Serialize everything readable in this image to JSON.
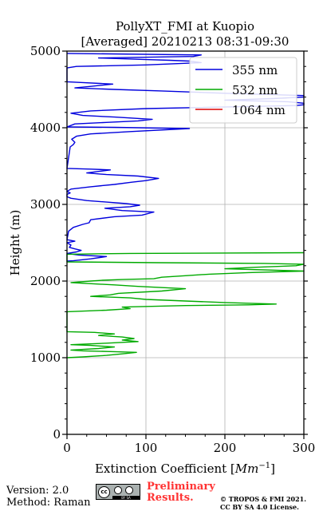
{
  "chart_data": {
    "type": "line",
    "title": "PollyXT_FMI at Kuopio",
    "subtitle": "[Averaged] 20210213 08:31-09:30",
    "xlabel": "Extinction Coefficient [",
    "xlabel_unit": "Mm",
    "xlabel_exp": "−1",
    "xlabel_close": "]",
    "ylabel": "Height (m)",
    "xlim": [
      0,
      300
    ],
    "ylim": [
      0,
      5000
    ],
    "xticks": [
      "0",
      "100",
      "200",
      "300"
    ],
    "yticks": [
      "0",
      "1000",
      "2000",
      "3000",
      "4000",
      "5000"
    ],
    "grid": true,
    "legend_position": "top-right",
    "series": [
      {
        "name": "355 nm",
        "color": "#0000dd",
        "points": [
          [
            0,
            2260
          ],
          [
            8,
            2265
          ],
          [
            30,
            2290
          ],
          [
            50,
            2320
          ],
          [
            15,
            2340
          ],
          [
            0,
            2360
          ],
          [
            12,
            2380
          ],
          [
            18,
            2400
          ],
          [
            10,
            2420
          ],
          [
            3,
            2440
          ],
          [
            5,
            2470
          ],
          [
            0,
            2500
          ],
          [
            10,
            2520
          ],
          [
            0,
            2540
          ],
          [
            2,
            2650
          ],
          [
            8,
            2700
          ],
          [
            20,
            2740
          ],
          [
            28,
            2760
          ],
          [
            30,
            2800
          ],
          [
            60,
            2840
          ],
          [
            95,
            2860
          ],
          [
            110,
            2900
          ],
          [
            70,
            2920
          ],
          [
            48,
            2950
          ],
          [
            80,
            2970
          ],
          [
            92,
            2990
          ],
          [
            75,
            3010
          ],
          [
            50,
            3030
          ],
          [
            25,
            3050
          ],
          [
            5,
            3080
          ],
          [
            0,
            3100
          ],
          [
            0,
            3130
          ],
          [
            4,
            3150
          ],
          [
            0,
            3170
          ],
          [
            5,
            3200
          ],
          [
            30,
            3230
          ],
          [
            60,
            3260
          ],
          [
            82,
            3290
          ],
          [
            100,
            3310
          ],
          [
            116,
            3340
          ],
          [
            90,
            3370
          ],
          [
            50,
            3390
          ],
          [
            25,
            3410
          ],
          [
            40,
            3430
          ],
          [
            55,
            3450
          ],
          [
            30,
            3460
          ],
          [
            0,
            3470
          ],
          [
            4,
            3750
          ],
          [
            8,
            3780
          ],
          [
            10,
            3810
          ],
          [
            6,
            3850
          ],
          [
            12,
            3890
          ],
          [
            30,
            3920
          ],
          [
            80,
            3950
          ],
          [
            155,
            3990
          ],
          [
            60,
            4005
          ],
          [
            0,
            4010
          ],
          [
            10,
            4050
          ],
          [
            50,
            4070
          ],
          [
            90,
            4090
          ],
          [
            108,
            4110
          ],
          [
            60,
            4140
          ],
          [
            20,
            4160
          ],
          [
            5,
            4190
          ],
          [
            30,
            4220
          ],
          [
            100,
            4250
          ],
          [
            290,
            4290
          ],
          [
            300,
            4300
          ],
          [
            300,
            4320
          ],
          [
            280,
            4340
          ],
          [
            200,
            4360
          ],
          [
            260,
            4380
          ],
          [
            300,
            4400
          ],
          [
            300,
            4420
          ],
          [
            200,
            4450
          ],
          [
            120,
            4480
          ],
          [
            60,
            4500
          ],
          [
            10,
            4520
          ],
          [
            30,
            4540
          ],
          [
            58,
            4570
          ],
          [
            20,
            4590
          ],
          [
            0,
            4600
          ],
          [
            0,
            4780
          ],
          [
            12,
            4800
          ],
          [
            100,
            4820
          ],
          [
            170,
            4850
          ],
          [
            155,
            4870
          ],
          [
            130,
            4880
          ],
          [
            100,
            4890
          ],
          [
            40,
            4910
          ],
          [
            160,
            4930
          ],
          [
            170,
            4950
          ],
          [
            0,
            4970
          ]
        ]
      },
      {
        "name": "532 nm",
        "color": "#00aa00",
        "points": [
          [
            0,
            1000
          ],
          [
            20,
            1010
          ],
          [
            50,
            1030
          ],
          [
            70,
            1050
          ],
          [
            88,
            1070
          ],
          [
            55,
            1080
          ],
          [
            20,
            1090
          ],
          [
            5,
            1100
          ],
          [
            40,
            1120
          ],
          [
            60,
            1140
          ],
          [
            30,
            1160
          ],
          [
            5,
            1170
          ],
          [
            50,
            1190
          ],
          [
            90,
            1210
          ],
          [
            70,
            1230
          ],
          [
            85,
            1250
          ],
          [
            70,
            1270
          ],
          [
            40,
            1290
          ],
          [
            60,
            1310
          ],
          [
            35,
            1330
          ],
          [
            0,
            1340
          ],
          [
            0,
            1600
          ],
          [
            50,
            1620
          ],
          [
            80,
            1640
          ],
          [
            70,
            1660
          ],
          [
            150,
            1680
          ],
          [
            230,
            1690
          ],
          [
            265,
            1700
          ],
          [
            200,
            1720
          ],
          [
            150,
            1740
          ],
          [
            100,
            1760
          ],
          [
            80,
            1780
          ],
          [
            30,
            1800
          ],
          [
            55,
            1820
          ],
          [
            65,
            1840
          ],
          [
            120,
            1870
          ],
          [
            150,
            1900
          ],
          [
            90,
            1930
          ],
          [
            60,
            1950
          ],
          [
            40,
            1960
          ],
          [
            5,
            1980
          ],
          [
            30,
            2000
          ],
          [
            45,
            2010
          ],
          [
            70,
            2020
          ],
          [
            110,
            2030
          ],
          [
            120,
            2050
          ],
          [
            150,
            2070
          ],
          [
            180,
            2090
          ],
          [
            230,
            2110
          ],
          [
            300,
            2130
          ],
          [
            200,
            2160
          ],
          [
            240,
            2180
          ],
          [
            290,
            2200
          ],
          [
            300,
            2220
          ],
          [
            250,
            2230
          ],
          [
            115,
            2240
          ],
          [
            0,
            2250
          ],
          [
            0,
            2350
          ],
          [
            80,
            2360
          ],
          [
            300,
            2370
          ]
        ]
      },
      {
        "name": "1064 nm",
        "color": "#dd0000",
        "points": []
      }
    ]
  },
  "footer": {
    "version": "Version: 2.0",
    "method": "Method: Raman",
    "badge_strip": "BY  SA",
    "badge_cc": "cc",
    "preliminary": "Preliminary Results.",
    "copyright_line1": "© TROPOS & FMI 2021.",
    "copyright_line2": "CC BY SA 4.0 License."
  }
}
